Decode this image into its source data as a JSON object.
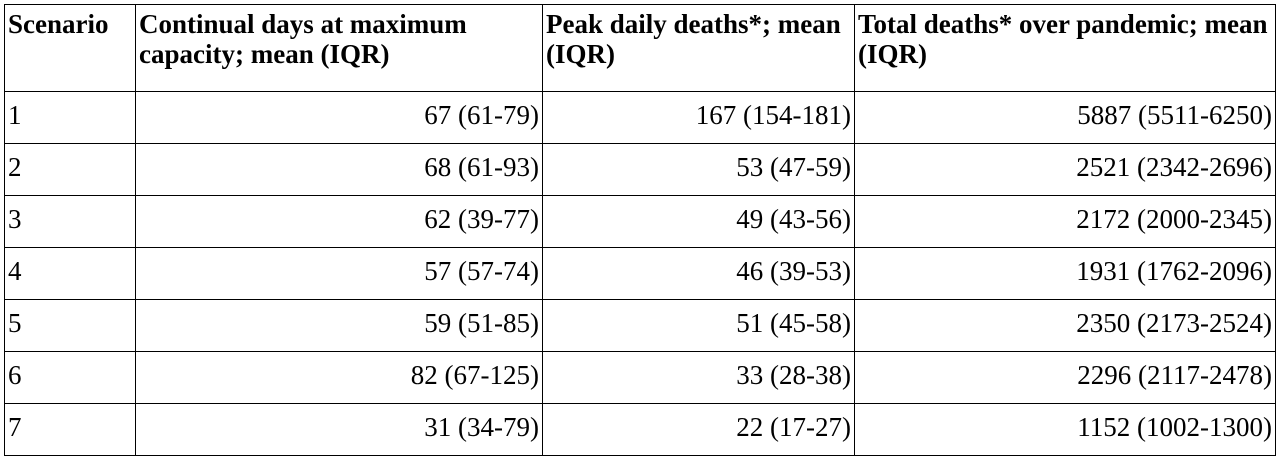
{
  "table": {
    "headers": [
      "Scenario",
      "Continual days at maximum capacity; mean (IQR)",
      "Peak daily deaths*; mean (IQR)",
      "Total deaths* over pandemic; mean (IQR)"
    ],
    "rows": [
      [
        "1",
        "67 (61-79)",
        "167 (154-181)",
        "5887 (5511-6250)"
      ],
      [
        "2",
        "68 (61-93)",
        "53 (47-59)",
        "2521 (2342-2696)"
      ],
      [
        "3",
        "62 (39-77)",
        "49 (43-56)",
        "2172 (2000-2345)"
      ],
      [
        "4",
        "57 (57-74)",
        "46 (39-53)",
        "1931 (1762-2096)"
      ],
      [
        "5",
        "59 (51-85)",
        "51 (45-58)",
        "2350 (2173-2524)"
      ],
      [
        "6",
        "82 (67-125)",
        "33 (28-38)",
        "2296 (2117-2478)"
      ],
      [
        "7",
        "31 (34-79)",
        "22 (17-27)",
        "1152 (1002-1300)"
      ]
    ]
  }
}
